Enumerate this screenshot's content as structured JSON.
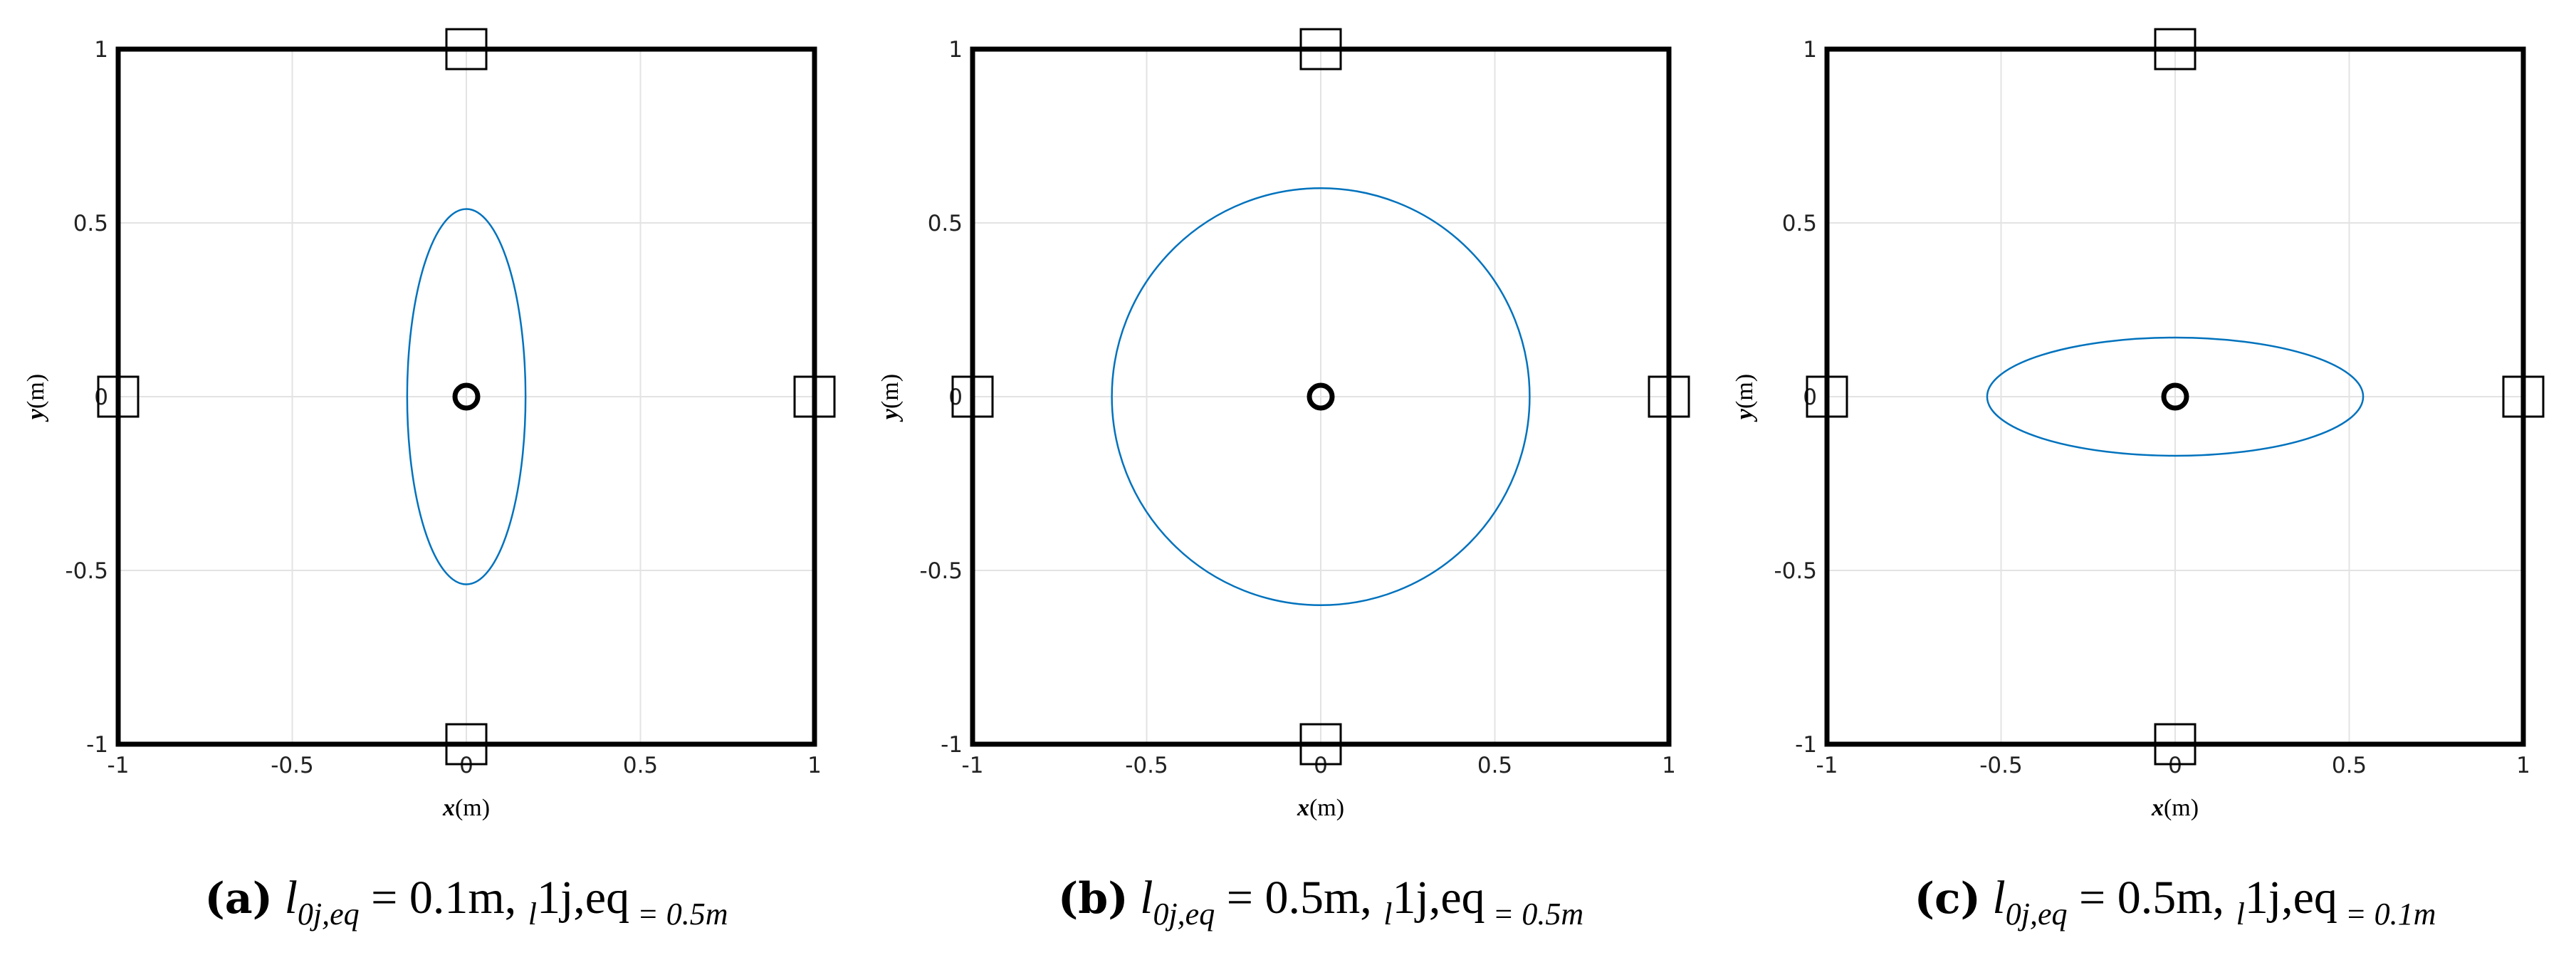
{
  "chart_data": [
    {
      "type": "ellipse",
      "center": [
        0,
        0
      ],
      "radii": [
        0.17,
        0.54
      ],
      "color": "#0072bd",
      "xlim": [
        -1,
        1
      ],
      "ylim": [
        -1,
        1
      ],
      "xticks": [
        -1,
        -0.5,
        0,
        0.5,
        1
      ],
      "yticks": [
        -1,
        -0.5,
        0,
        0.5,
        1
      ],
      "grid": true,
      "xlabel": [
        "x",
        "(m)"
      ],
      "ylabel": [
        "y",
        "(m)"
      ],
      "anchors": {
        "x": [
          0,
          0,
          -1,
          1
        ],
        "y": [
          1,
          -1,
          0,
          0
        ]
      },
      "caption_label": "(a)",
      "caption": [
        "l",
        "0j,eq",
        " = 0.1m, ",
        "l",
        "1j,eq",
        " = 0.5m"
      ]
    },
    {
      "type": "ellipse",
      "center": [
        0,
        0
      ],
      "radii": [
        0.6,
        0.6
      ],
      "color": "#0072bd",
      "xlim": [
        -1,
        1
      ],
      "ylim": [
        -1,
        1
      ],
      "xticks": [
        -1,
        -0.5,
        0,
        0.5,
        1
      ],
      "yticks": [
        -1,
        -0.5,
        0,
        0.5,
        1
      ],
      "grid": true,
      "xlabel": [
        "x",
        "(m)"
      ],
      "ylabel": [
        "y",
        "(m)"
      ],
      "anchors": {
        "x": [
          0,
          0,
          -1,
          1
        ],
        "y": [
          1,
          -1,
          0,
          0
        ]
      },
      "caption_label": "(b)",
      "caption": [
        "l",
        "0j,eq",
        " = 0.5m, ",
        "l",
        "1j,eq",
        " = 0.5m"
      ]
    },
    {
      "type": "ellipse",
      "center": [
        0,
        0
      ],
      "radii": [
        0.54,
        0.17
      ],
      "color": "#0072bd",
      "xlim": [
        -1,
        1
      ],
      "ylim": [
        -1,
        1
      ],
      "xticks": [
        -1,
        -0.5,
        0,
        0.5,
        1
      ],
      "yticks": [
        -1,
        -0.5,
        0,
        0.5,
        1
      ],
      "grid": true,
      "xlabel": [
        "x",
        "(m)"
      ],
      "ylabel": [
        "y",
        "(m)"
      ],
      "anchors": {
        "x": [
          0,
          0,
          -1,
          1
        ],
        "y": [
          1,
          -1,
          0,
          0
        ]
      },
      "caption_label": "(c)",
      "caption": [
        "l",
        "0j,eq",
        " = 0.5m, ",
        "l",
        "1j,eq",
        " = 0.1m"
      ]
    }
  ]
}
